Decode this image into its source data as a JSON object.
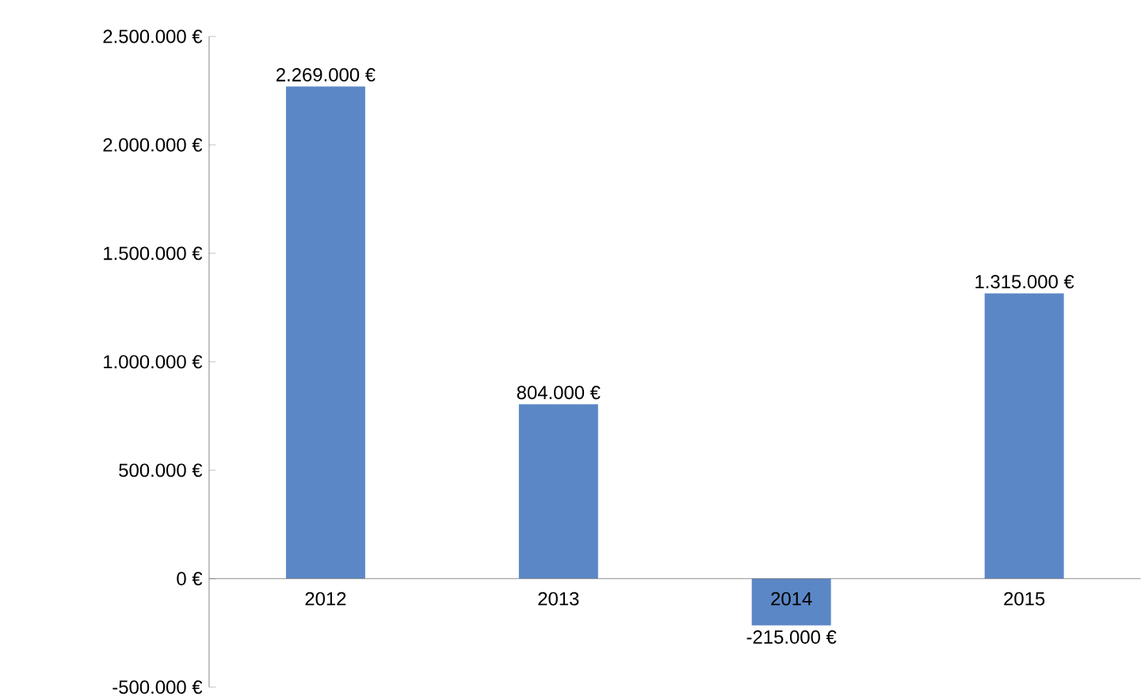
{
  "chart_data": {
    "type": "bar",
    "categories": [
      "2012",
      "2013",
      "2014",
      "2015"
    ],
    "values": [
      2269000,
      804000,
      -215000,
      1315000
    ],
    "value_labels": [
      "2.269.000 €",
      "804.000 €",
      "-215.000 €",
      "1.315.000 €"
    ],
    "color": "#5b87c6",
    "ylim": [
      -500000,
      2500000
    ],
    "yticks": [
      {
        "value": -500000,
        "label": "-500.000 €"
      },
      {
        "value": 0,
        "label": "0 €"
      },
      {
        "value": 500000,
        "label": "500.000 €"
      },
      {
        "value": 1000000,
        "label": "1.000.000 €"
      },
      {
        "value": 1500000,
        "label": "1.500.000 €"
      },
      {
        "value": 2000000,
        "label": "2.000.000 €"
      },
      {
        "value": 2500000,
        "label": "2.500.000 €"
      }
    ],
    "grid": false
  }
}
